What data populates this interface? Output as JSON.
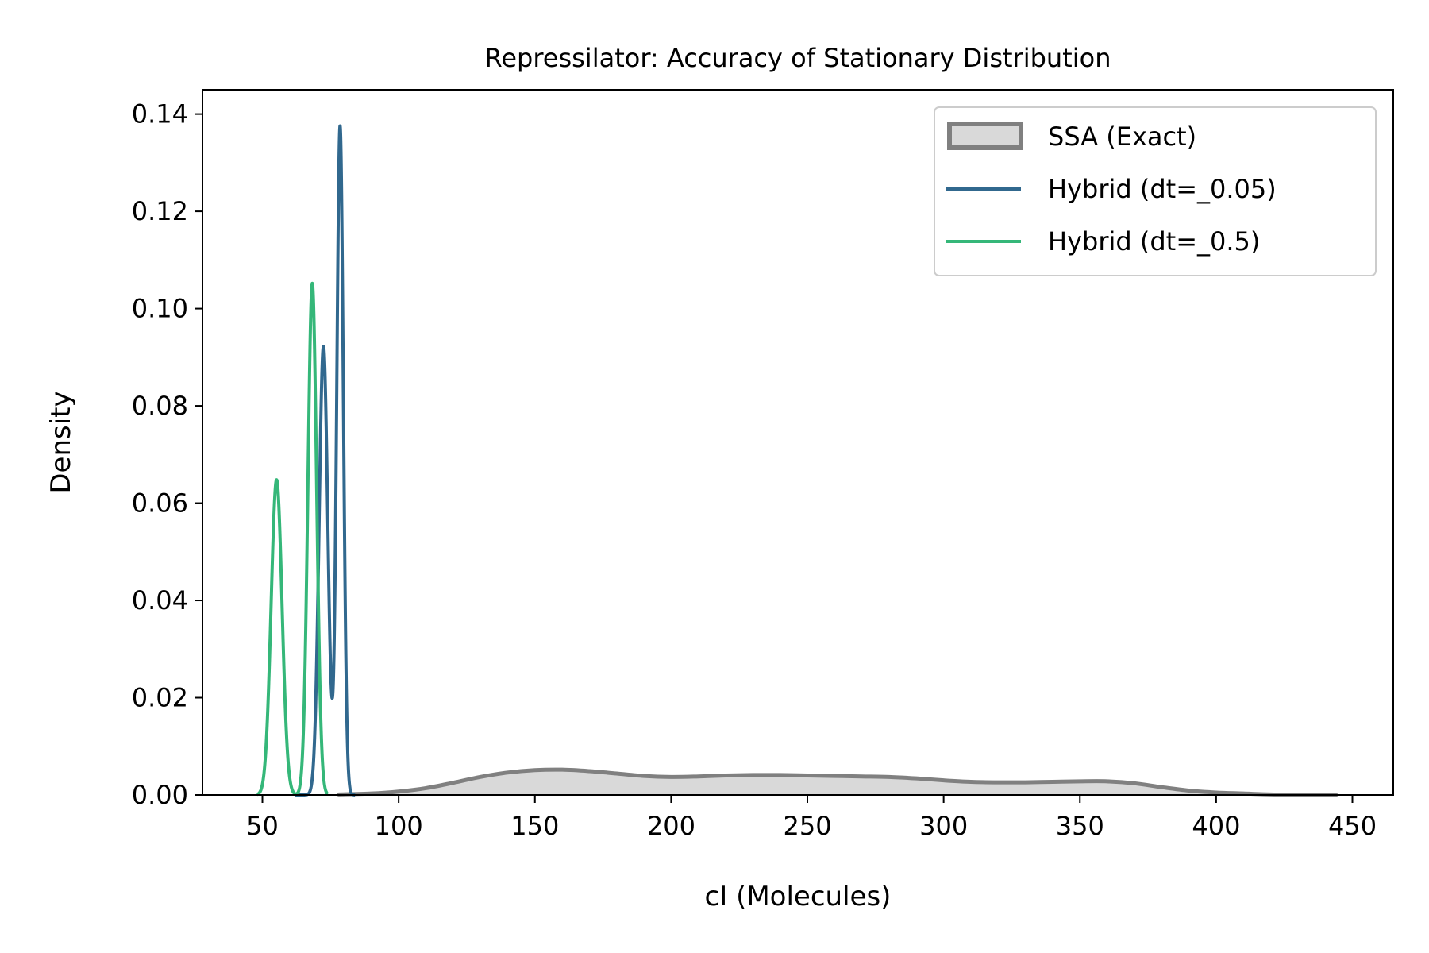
{
  "chart_data": {
    "type": "line",
    "title": "Repressilator: Accuracy of Stationary Distribution",
    "xlabel": "cI (Molecules)",
    "ylabel": "Density",
    "xlim": [
      28,
      465
    ],
    "ylim": [
      0,
      0.145
    ],
    "xticks": [
      50,
      100,
      150,
      200,
      250,
      300,
      350,
      400,
      450
    ],
    "xtick_labels": [
      "50",
      "100",
      "150",
      "200",
      "250",
      "300",
      "350",
      "400",
      "450"
    ],
    "yticks": [
      0,
      0.02,
      0.04,
      0.06,
      0.08,
      0.1,
      0.12,
      0.14
    ],
    "ytick_labels": [
      "0.00",
      "0.02",
      "0.04",
      "0.06",
      "0.08",
      "0.10",
      "0.12",
      "0.14"
    ],
    "grid": false,
    "legend_position": "top-right",
    "series": [
      {
        "name": "SSA (Exact)",
        "style": "filled-area",
        "color": "#808080",
        "fill": "#d9d9d9",
        "x": [
          78,
          90,
          100,
          110,
          120,
          130,
          140,
          150,
          160,
          170,
          180,
          190,
          200,
          210,
          220,
          230,
          240,
          250,
          260,
          270,
          280,
          290,
          300,
          310,
          320,
          330,
          340,
          350,
          360,
          370,
          380,
          390,
          400,
          410,
          420,
          430,
          444
        ],
        "y": [
          0.0001,
          0.0003,
          0.0007,
          0.0014,
          0.0025,
          0.0037,
          0.0046,
          0.0051,
          0.0052,
          0.0049,
          0.0044,
          0.0039,
          0.0037,
          0.0038,
          0.004,
          0.0041,
          0.0041,
          0.004,
          0.0039,
          0.0038,
          0.0037,
          0.0034,
          0.003,
          0.0027,
          0.0026,
          0.0026,
          0.0027,
          0.0028,
          0.0028,
          0.0024,
          0.0016,
          0.0009,
          0.0005,
          0.0003,
          0.0001,
          5e-05,
          0.0
        ]
      },
      {
        "name": "Hybrid (dt=_0.05)",
        "style": "line",
        "color": "#31688e",
        "peaks": [
          {
            "center": 72.4,
            "height": 0.0922,
            "sigma": 1.6
          },
          {
            "center": 78.5,
            "height": 0.1375,
            "sigma": 1.2
          }
        ],
        "x_range": [
          62,
          84
        ]
      },
      {
        "name": "Hybrid (dt=_0.5)",
        "style": "line",
        "color": "#35b779",
        "peaks": [
          {
            "center": 55.2,
            "height": 0.0648,
            "sigma": 2.0
          },
          {
            "center": 68.3,
            "height": 0.1052,
            "sigma": 1.6
          }
        ],
        "x_range": [
          48,
          74
        ]
      }
    ]
  }
}
